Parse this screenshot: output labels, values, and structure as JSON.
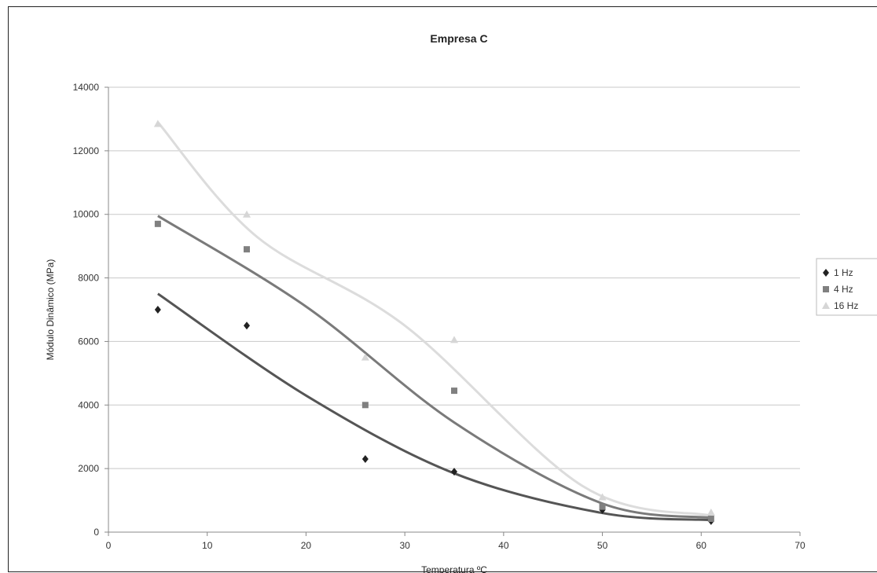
{
  "chart_data": {
    "type": "scatter",
    "title": "Empresa C",
    "xlabel": "Temperatura ºC",
    "ylabel": "Módulo Dinâmico (MPa)",
    "xlim": [
      0,
      70
    ],
    "ylim": [
      0,
      14000
    ],
    "x_ticks": [
      "0",
      "10",
      "20",
      "30",
      "40",
      "50",
      "60",
      "70"
    ],
    "y_ticks": [
      "0",
      "2000",
      "4000",
      "6000",
      "8000",
      "10000",
      "12000",
      "14000"
    ],
    "grid": "horizontal",
    "legend_position": "right",
    "trendline": "polynomial",
    "series": [
      {
        "name": "1 Hz",
        "marker": "diamond",
        "color": "#222222",
        "line_color": "#555555",
        "x": [
          5,
          14,
          26,
          35,
          50,
          61
        ],
        "y": [
          7000,
          6500,
          2300,
          1900,
          700,
          350
        ],
        "trend": [
          [
            5,
            7500
          ],
          [
            20,
            4300
          ],
          [
            35,
            1850
          ],
          [
            50,
            600
          ],
          [
            61,
            380
          ]
        ]
      },
      {
        "name": "4 Hz",
        "marker": "square",
        "color": "#808080",
        "line_color": "#7a7a7a",
        "x": [
          5,
          14,
          26,
          35,
          50,
          61
        ],
        "y": [
          9700,
          8900,
          4000,
          4450,
          800,
          420
        ],
        "trend": [
          [
            5,
            9950
          ],
          [
            20,
            7100
          ],
          [
            35,
            3450
          ],
          [
            50,
            900
          ],
          [
            61,
            450
          ]
        ]
      },
      {
        "name": "16 Hz",
        "marker": "triangle",
        "color": "#d6d6d6",
        "line_color": "#dcdcdc",
        "x": [
          5,
          14,
          26,
          35,
          50,
          61
        ],
        "y": [
          12850,
          10000,
          5500,
          6050,
          1100,
          620
        ],
        "trend": [
          [
            5,
            12900
          ],
          [
            15,
            9300
          ],
          [
            30,
            6500
          ],
          [
            48,
            1450
          ],
          [
            61,
            520
          ]
        ]
      }
    ]
  }
}
